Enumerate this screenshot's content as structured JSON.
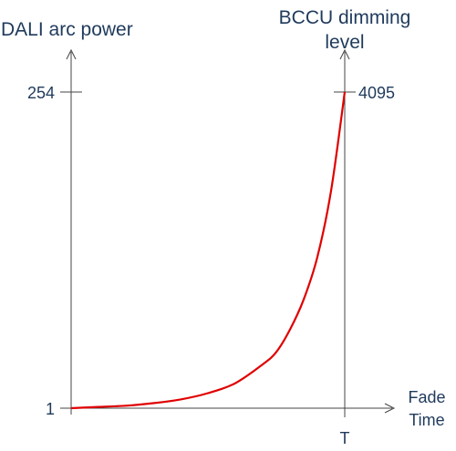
{
  "chart_data": {
    "type": "line",
    "left_axis_label": "DALI arc power",
    "right_axis_label_line1": "BCCU dimming",
    "right_axis_label_line2": "level",
    "x_axis_label_line1": "Fade",
    "x_axis_label_line2": "Time",
    "left_ticks": [
      "254",
      "1"
    ],
    "right_ticks": [
      "4095"
    ],
    "x_ticks": [
      "T"
    ],
    "left_range": [
      1,
      254
    ],
    "right_range": [
      0,
      4095
    ],
    "series": [
      {
        "color": "#e00000",
        "x": [
          0,
          0.1,
          0.2,
          0.3,
          0.4,
          0.5,
          0.6,
          0.7,
          0.75,
          0.8,
          0.85,
          0.9,
          0.95,
          1.0
        ],
        "y": [
          1,
          2,
          3,
          5,
          8,
          13,
          21,
          36,
          46,
          64,
          88,
          122,
          175,
          254
        ]
      }
    ],
    "grid": false
  }
}
